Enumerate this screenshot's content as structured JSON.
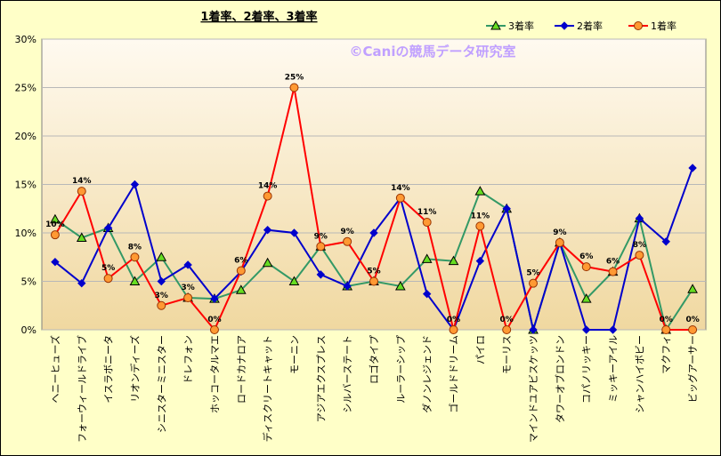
{
  "chart_data": {
    "type": "line",
    "title": "1着率、2着率、3着率",
    "watermark": "©Caniの競馬データ研究室",
    "xlabel": "",
    "ylabel": "",
    "ylim": [
      0,
      0.3
    ],
    "yticks": [
      "0%",
      "5%",
      "10%",
      "15%",
      "20%",
      "25%",
      "30%"
    ],
    "grid": true,
    "legend_position": "top-right",
    "categories": [
      "ヘニーヒューズ",
      "フォーウィールドライブ",
      "イスラボニータ",
      "リオンディーズ",
      "シニスターミニスター",
      "ドレフォン",
      "ホッコータルマエ",
      "ロードカナロア",
      "ディスクリートキャット",
      "モーニン",
      "アジアエクスプレス",
      "シルバーステート",
      "ロゴタイプ",
      "ルーラーシップ",
      "ダノンレジェンド",
      "ゴールドドリーム",
      "パイロ",
      "モーリス",
      "マインドユアビスケッツ",
      "タワーオブロンドン",
      "コパノリッキー",
      "ミッキーアイル",
      "シャンハイボビー",
      "マクフィ",
      "ビッグアーサー"
    ],
    "series": [
      {
        "name": "3着率",
        "color": "#339966",
        "marker": "triangle",
        "values": [
          0.114,
          0.095,
          0.105,
          0.05,
          0.075,
          0.033,
          0.032,
          0.041,
          0.069,
          0.05,
          0.086,
          0.045,
          0.05,
          0.045,
          0.073,
          0.071,
          0.143,
          0.125,
          0.0,
          0.09,
          0.032,
          0.06,
          0.115,
          0.0,
          0.042
        ]
      },
      {
        "name": "2着率",
        "color": "#0000cc",
        "marker": "diamond",
        "values": [
          0.07,
          0.048,
          0.105,
          0.15,
          0.05,
          0.067,
          0.032,
          0.06,
          0.103,
          0.1,
          0.057,
          0.045,
          0.1,
          0.136,
          0.037,
          0.0,
          0.071,
          0.125,
          0.0,
          0.09,
          0.0,
          0.0,
          0.115,
          0.091,
          0.167
        ]
      },
      {
        "name": "1着率",
        "color": "#ff0000",
        "marker": "circle",
        "values": [
          0.098,
          0.143,
          0.053,
          0.075,
          0.025,
          0.033,
          0.0,
          0.061,
          0.138,
          0.25,
          0.086,
          0.091,
          0.05,
          0.136,
          0.111,
          0.0,
          0.107,
          0.0,
          0.048,
          0.09,
          0.065,
          0.06,
          0.077,
          0.0,
          0.0
        ]
      }
    ],
    "data_labels_series": "1着率",
    "data_labels": [
      "10%",
      "14%",
      "5%",
      "8%",
      "3%",
      "3%",
      "0%",
      "6%",
      "14%",
      "25%",
      "9%",
      "9%",
      "5%",
      "14%",
      "11%",
      "0%",
      "11%",
      "0%",
      "5%",
      "9%",
      "6%",
      "6%",
      "8%",
      "0%",
      "0%"
    ]
  }
}
